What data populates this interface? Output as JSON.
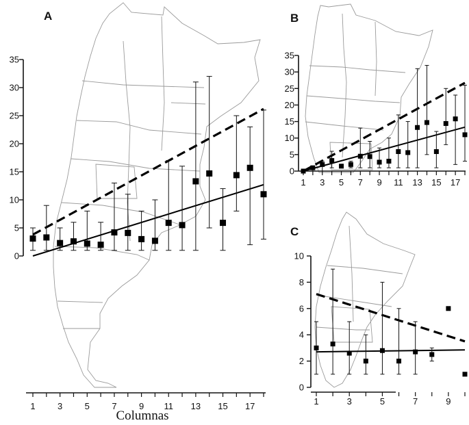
{
  "chart_data": [
    {
      "type": "scatter",
      "panel": "A",
      "xlabel": "Columnas",
      "ylabel": "",
      "xlim": [
        1,
        18
      ],
      "ylim": [
        0,
        35
      ],
      "xticks": [
        "1",
        "3",
        "5",
        "7",
        "9",
        "11",
        "13",
        "15",
        "17"
      ],
      "yticks": [
        "0",
        "5",
        "10",
        "15",
        "20",
        "25",
        "30",
        "35"
      ],
      "points": [
        {
          "x": 1,
          "y": 3.1,
          "lo": 1,
          "hi": 5
        },
        {
          "x": 2,
          "y": 3.3,
          "lo": 1,
          "hi": 9
        },
        {
          "x": 3,
          "y": 2.3,
          "lo": 1,
          "hi": 5
        },
        {
          "x": 4,
          "y": 2.6,
          "lo": 1,
          "hi": 6
        },
        {
          "x": 5,
          "y": 2.2,
          "lo": 1,
          "hi": 8
        },
        {
          "x": 6,
          "y": 2.0,
          "lo": 1,
          "hi": 6
        },
        {
          "x": 7,
          "y": 4.2,
          "lo": 1,
          "hi": 13
        },
        {
          "x": 8,
          "y": 4.1,
          "lo": 1,
          "hi": 11
        },
        {
          "x": 9,
          "y": 3.0,
          "lo": 1,
          "hi": 8
        },
        {
          "x": 10,
          "y": 2.7,
          "lo": 1,
          "hi": 10
        },
        {
          "x": 11,
          "y": 5.9,
          "lo": 1,
          "hi": 17
        },
        {
          "x": 12,
          "y": 5.5,
          "lo": 1,
          "hi": 16
        },
        {
          "x": 13,
          "y": 13.3,
          "lo": 1,
          "hi": 31
        },
        {
          "x": 14,
          "y": 14.7,
          "lo": 5,
          "hi": 32
        },
        {
          "x": 15,
          "y": 5.9,
          "lo": 1,
          "hi": 12
        },
        {
          "x": 16,
          "y": 14.4,
          "lo": 8,
          "hi": 25
        },
        {
          "x": 17,
          "y": 15.7,
          "lo": 2,
          "hi": 23
        },
        {
          "x": 18,
          "y": 11.0,
          "lo": 3,
          "hi": 26
        }
      ],
      "lines": [
        {
          "style": "dashed",
          "x": [
            1,
            18
          ],
          "y": [
            3.8,
            26.2
          ]
        },
        {
          "style": "solid",
          "x": [
            1,
            18
          ],
          "y": [
            0.0,
            12.7
          ]
        }
      ]
    },
    {
      "type": "scatter",
      "panel": "B",
      "xlabel": "",
      "ylabel": "",
      "xlim": [
        1,
        18
      ],
      "ylim": [
        0,
        35
      ],
      "xticks": [
        "1",
        "3",
        "5",
        "7",
        "9",
        "11",
        "13",
        "15",
        "17"
      ],
      "yticks": [
        "0",
        "5",
        "10",
        "15",
        "20",
        "25",
        "30",
        "35"
      ],
      "points": [
        {
          "x": 1,
          "y": 0.0,
          "lo": 0,
          "hi": 0
        },
        {
          "x": 2,
          "y": 1.0,
          "lo": 0,
          "hi": 1.5
        },
        {
          "x": 3,
          "y": 2.0,
          "lo": 0,
          "hi": 3
        },
        {
          "x": 4,
          "y": 3.2,
          "lo": 1,
          "hi": 6
        },
        {
          "x": 5,
          "y": 1.5,
          "lo": 1,
          "hi": 2
        },
        {
          "x": 6,
          "y": 2.0,
          "lo": 1,
          "hi": 3
        },
        {
          "x": 7,
          "y": 4.5,
          "lo": 1,
          "hi": 13
        },
        {
          "x": 8,
          "y": 4.4,
          "lo": 1,
          "hi": 9
        },
        {
          "x": 9,
          "y": 2.7,
          "lo": 1,
          "hi": 7
        },
        {
          "x": 10,
          "y": 3.0,
          "lo": 1,
          "hi": 10
        },
        {
          "x": 11,
          "y": 5.9,
          "lo": 1,
          "hi": 17
        },
        {
          "x": 12,
          "y": 5.6,
          "lo": 1,
          "hi": 15
        },
        {
          "x": 13,
          "y": 13.2,
          "lo": 1,
          "hi": 31
        },
        {
          "x": 14,
          "y": 14.7,
          "lo": 5,
          "hi": 32
        },
        {
          "x": 15,
          "y": 5.9,
          "lo": 1,
          "hi": 12
        },
        {
          "x": 16,
          "y": 14.4,
          "lo": 8,
          "hi": 25
        },
        {
          "x": 17,
          "y": 15.8,
          "lo": 2,
          "hi": 23
        },
        {
          "x": 18,
          "y": 11.0,
          "lo": 3,
          "hi": 26
        }
      ],
      "lines": [
        {
          "style": "dashed",
          "x": [
            1,
            18
          ],
          "y": [
            0.0,
            26.7
          ]
        },
        {
          "style": "solid",
          "x": [
            1,
            18
          ],
          "y": [
            0.0,
            13.3
          ]
        }
      ]
    },
    {
      "type": "scatter",
      "panel": "C",
      "xlabel": "",
      "ylabel": "",
      "xlim": [
        1,
        10
      ],
      "ylim": [
        0,
        10
      ],
      "xticks": [
        "1",
        "3",
        "5",
        "7",
        "9"
      ],
      "yticks": [
        "0",
        "2",
        "4",
        "6",
        "8",
        "10"
      ],
      "points": [
        {
          "x": 1,
          "y": 3.0,
          "lo": 1,
          "hi": 5
        },
        {
          "x": 2,
          "y": 3.3,
          "lo": 1,
          "hi": 9
        },
        {
          "x": 3,
          "y": 2.6,
          "lo": 1,
          "hi": 5
        },
        {
          "x": 4,
          "y": 2.0,
          "lo": 1,
          "hi": 4
        },
        {
          "x": 5,
          "y": 2.8,
          "lo": 1,
          "hi": 8
        },
        {
          "x": 6,
          "y": 2.0,
          "lo": 1,
          "hi": 6
        },
        {
          "x": 7,
          "y": 2.7,
          "lo": 1,
          "hi": 5
        },
        {
          "x": 8,
          "y": 2.5,
          "lo": 2,
          "hi": 3
        },
        {
          "x": 9,
          "y": 6.0,
          "lo": 6,
          "hi": 6
        },
        {
          "x": 10,
          "y": 1.0,
          "lo": 1,
          "hi": 1
        }
      ],
      "lines": [
        {
          "style": "dashed",
          "x": [
            1,
            10
          ],
          "y": [
            7.1,
            3.5
          ]
        },
        {
          "style": "solid",
          "x": [
            1,
            10
          ],
          "y": [
            2.7,
            2.85
          ]
        }
      ]
    }
  ]
}
